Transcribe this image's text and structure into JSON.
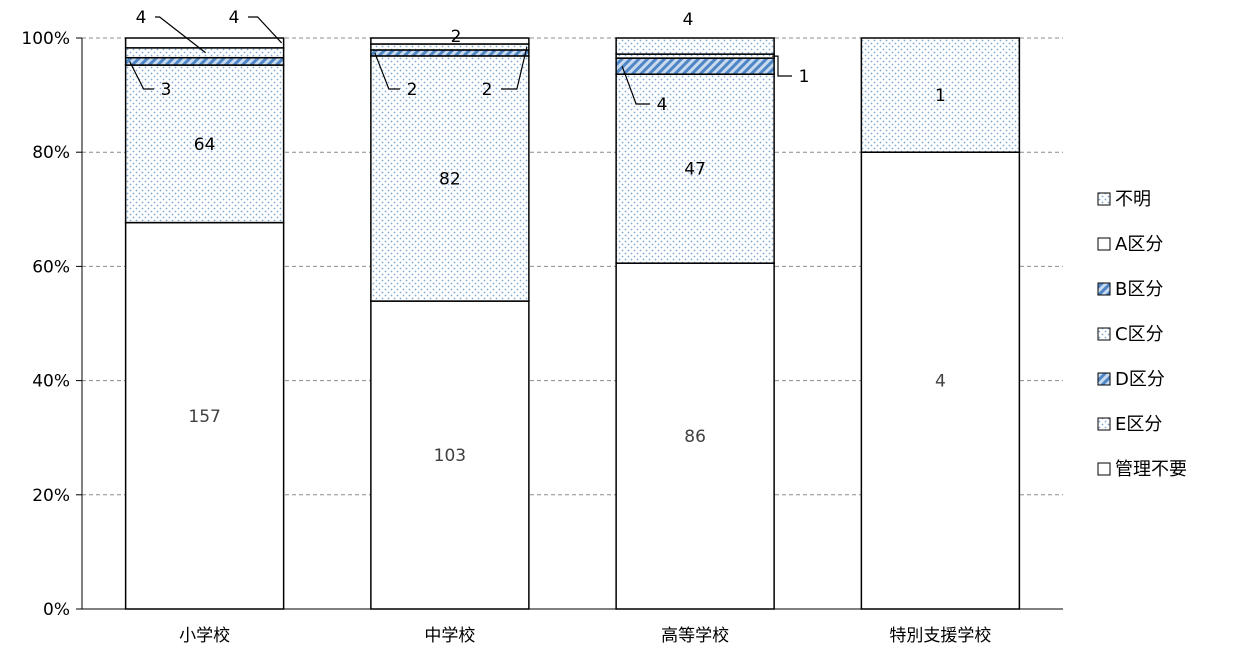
{
  "chart_data": {
    "type": "bar",
    "stacked": "percent",
    "categories": [
      "小学校",
      "中学校",
      "高等学校",
      "特別支援学校"
    ],
    "series": [
      {
        "name": "管理不要",
        "values": [
          157,
          103,
          86,
          4
        ],
        "fill": "white"
      },
      {
        "name": "E区分",
        "values": [
          64,
          82,
          47,
          1
        ],
        "fill": "dots"
      },
      {
        "name": "D区分",
        "values": [
          3,
          2,
          4,
          0
        ],
        "fill": "diag"
      },
      {
        "name": "C区分",
        "values": [
          4,
          2,
          1,
          0
        ],
        "fill": "dots"
      },
      {
        "name": "B区分",
        "values": [
          0,
          0,
          0,
          0
        ],
        "fill": "diag"
      },
      {
        "name": "A区分",
        "values": [
          4,
          2,
          0,
          0
        ],
        "fill": "white"
      },
      {
        "name": "不明",
        "values": [
          0,
          0,
          4,
          0
        ],
        "fill": "dots"
      }
    ],
    "legend_order": [
      "不明",
      "A区分",
      "B区分",
      "C区分",
      "D区分",
      "E区分",
      "管理不要"
    ],
    "y_ticks": [
      "0%",
      "20%",
      "40%",
      "60%",
      "80%",
      "100%"
    ],
    "ylim": [
      0,
      100
    ],
    "grid": "dashed-horizontal",
    "legend_position": "right",
    "colors": {
      "dots": "#7fa7d6",
      "diag": "#4f86c6",
      "border": "#000000",
      "grid": "#8c8c8c"
    }
  }
}
